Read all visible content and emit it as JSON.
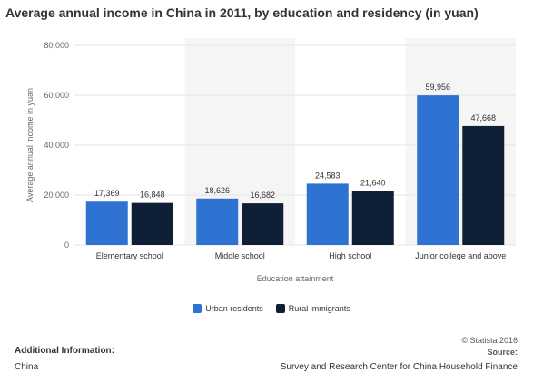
{
  "title": "Average annual income in China in 2011, by education and residency (in yuan)",
  "colors": {
    "urban": "#2e72d2",
    "rural": "#0f1f36",
    "band": "#f5f5f5",
    "grid": "#e5e5e5"
  },
  "chart_data": {
    "type": "bar",
    "categories": [
      "Elementary school",
      "Middle school",
      "High school",
      "Junior college and above"
    ],
    "series": [
      {
        "name": "Urban residents",
        "values": [
          17369,
          18626,
          24583,
          59956
        ],
        "labels": [
          "17,369",
          "18,626",
          "24,583",
          "59,956"
        ]
      },
      {
        "name": "Rural immigrants",
        "values": [
          16848,
          16682,
          21640,
          47668
        ],
        "labels": [
          "16,848",
          "16,682",
          "21,640",
          "47,668"
        ]
      }
    ],
    "xlabel": "Education attainment",
    "ylabel": "Average annual income in yuan",
    "ylim": [
      0,
      80000
    ],
    "yticks": [
      0,
      20000,
      40000,
      60000,
      80000
    ],
    "ytick_labels": [
      "0",
      "20,000",
      "40,000",
      "60,000",
      "80,000"
    ],
    "grid": true,
    "legend_position": "bottom"
  },
  "footer": {
    "additional_label": "Additional Information:",
    "additional_value": "China",
    "source_line1": "© Statista 2016",
    "source_line2": "Source:",
    "source_line3": "Survey and Research Center for China Household Finance"
  }
}
